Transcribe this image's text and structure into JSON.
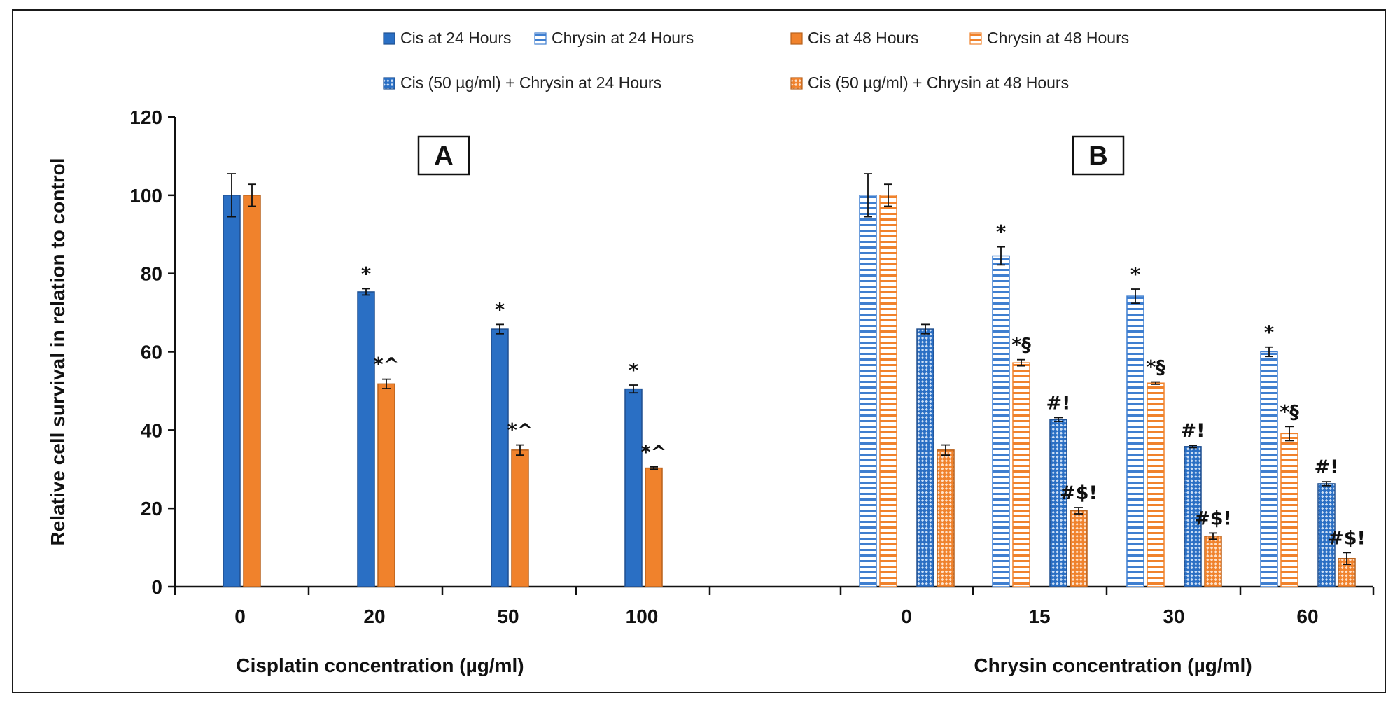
{
  "chart_data": {
    "type": "bar",
    "ylabel": "Relative cell survival in relation to control",
    "ylim": [
      0,
      120
    ],
    "yticks": [
      0,
      20,
      40,
      60,
      80,
      100,
      120
    ],
    "legend": {
      "placement": "top",
      "entries": [
        {
          "key": "cis24",
          "label": "Cis at 24 Hours"
        },
        {
          "key": "chr24",
          "label": "Chrysin at 24 Hours"
        },
        {
          "key": "cis48",
          "label": "Cis at 48 Hours"
        },
        {
          "key": "chr48",
          "label": "Chrysin at 48 Hours"
        },
        {
          "key": "combo24",
          "label": "Cis (50 µg/ml) + Chrysin at 24 Hours"
        },
        {
          "key": "combo48",
          "label": "Cis (50 µg/ml) + Chrysin at 48 Hours"
        }
      ]
    },
    "colors": {
      "cis24": "#2a6fc4",
      "cis24_border": "#1f4f8f",
      "chr24": "#3f7fd0",
      "cis48": "#f0822c",
      "cis48_border": "#b8611c",
      "chr48": "#f0822c"
    },
    "panels": [
      {
        "label": "A",
        "xlabel": "Cisplatin concentration (µg/ml)",
        "categories": [
          "0",
          "20",
          "50",
          "100"
        ],
        "series": [
          {
            "key": "cis24",
            "name": "Cis at 24 Hours",
            "values": [
              100,
              75.3,
              65.8,
              50.5
            ],
            "errors": [
              5.5,
              0.8,
              1.2,
              1.0
            ],
            "annotations": [
              "",
              "*",
              "*",
              "*"
            ]
          },
          {
            "key": "cis48",
            "name": "Cis at 48 Hours",
            "values": [
              100,
              51.8,
              34.9,
              30.3
            ],
            "errors": [
              2.8,
              1.2,
              1.3,
              0.3
            ],
            "annotations": [
              "",
              "*^",
              "*^",
              "*^"
            ]
          }
        ]
      },
      {
        "label": "B",
        "xlabel": "Chrysin concentration (µg/ml)",
        "categories": [
          "0",
          "15",
          "30",
          "60"
        ],
        "series": [
          {
            "key": "chr24",
            "name": "Chrysin at 24 Hours",
            "values": [
              100,
              84.5,
              74.2,
              60.0
            ],
            "errors": [
              5.5,
              2.3,
              1.8,
              1.2
            ],
            "annotations": [
              "",
              "*",
              "*",
              "*"
            ]
          },
          {
            "key": "chr48",
            "name": "Chrysin at 48 Hours",
            "values": [
              100,
              57.2,
              52.0,
              39.1
            ],
            "errors": [
              2.8,
              0.8,
              0.3,
              1.8
            ],
            "annotations": [
              "",
              "*§",
              "*§",
              "*§"
            ]
          },
          {
            "key": "combo24",
            "name": "Cis (50 µg/ml) + Chrysin at 24 Hours",
            "values": [
              65.8,
              42.7,
              35.8,
              26.3
            ],
            "errors": [
              1.2,
              0.5,
              0.3,
              0.5
            ],
            "annotations": [
              "",
              "#!",
              "#!",
              "#!"
            ]
          },
          {
            "key": "combo48",
            "name": "Cis (50 µg/ml) + Chrysin at 48 Hours",
            "values": [
              34.9,
              19.4,
              12.9,
              7.2
            ],
            "errors": [
              1.3,
              0.8,
              0.8,
              1.5
            ],
            "annotations": [
              "",
              "#$!",
              "#$!",
              "#$!"
            ]
          }
        ]
      }
    ]
  }
}
